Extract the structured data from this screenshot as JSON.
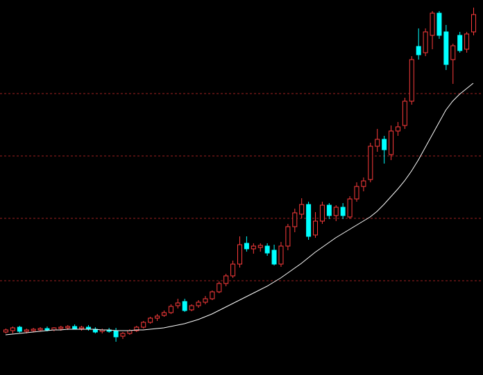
{
  "chart_data": {
    "type": "candlestick",
    "categories": [
      null,
      null,
      null,
      null,
      null,
      null,
      null,
      null,
      null,
      null,
      null,
      null,
      null,
      null,
      null,
      null,
      null,
      null,
      null,
      null,
      null,
      null,
      null,
      null,
      null,
      null,
      null,
      null,
      null,
      null,
      null,
      null,
      null,
      null,
      null,
      null,
      null,
      null,
      null,
      null,
      null,
      null,
      null,
      null,
      null,
      null,
      null,
      null,
      null,
      null,
      null,
      null,
      null,
      null,
      null,
      null,
      null,
      null,
      null,
      null,
      null,
      null,
      null,
      null,
      null,
      null,
      null,
      null,
      null
    ],
    "candles": {
      "open": [
        62,
        64,
        69,
        63,
        64,
        65,
        67,
        65,
        67,
        68,
        70,
        67,
        69,
        66,
        63,
        65,
        64,
        56,
        60,
        64,
        69,
        76,
        82,
        86,
        90,
        100,
        106,
        94,
        100,
        105,
        110,
        120,
        132,
        143,
        160,
        190,
        182,
        184,
        186,
        180,
        160,
        186,
        214,
        232,
        246,
        202,
        222,
        245,
        230,
        242,
        228,
        254,
        272,
        282,
        330,
        340,
        318,
        352,
        360,
        395,
        474,
        465,
        490,
        522,
        495,
        455,
        490,
        470,
        495
      ],
      "high": [
        67,
        70,
        71,
        67,
        68,
        69,
        70,
        69,
        71,
        72,
        73,
        71,
        72,
        69,
        67,
        68,
        68,
        62,
        66,
        71,
        78,
        84,
        88,
        93,
        102,
        110,
        110,
        102,
        108,
        114,
        122,
        135,
        146,
        165,
        200,
        200,
        190,
        190,
        190,
        188,
        192,
        218,
        240,
        255,
        250,
        235,
        250,
        248,
        245,
        248,
        258,
        278,
        285,
        335,
        355,
        345,
        360,
        365,
        400,
        460,
        500,
        500,
        525,
        525,
        505,
        478,
        495,
        495,
        530
      ],
      "low": [
        60,
        60,
        61,
        60,
        62,
        63,
        63,
        63,
        64,
        65,
        66,
        64,
        64,
        60,
        60,
        61,
        48,
        52,
        58,
        62,
        67,
        74,
        78,
        84,
        88,
        96,
        91,
        92,
        97,
        102,
        108,
        118,
        128,
        140,
        155,
        178,
        175,
        178,
        172,
        158,
        156,
        180,
        206,
        226,
        195,
        198,
        218,
        225,
        222,
        225,
        225,
        250,
        265,
        278,
        322,
        305,
        310,
        345,
        355,
        390,
        455,
        460,
        470,
        485,
        440,
        420,
        465,
        465,
        490
      ],
      "close": [
        65,
        68,
        63,
        65,
        66,
        67,
        65,
        68,
        69,
        70,
        67,
        69,
        66,
        62,
        65,
        63,
        55,
        60,
        64,
        69,
        76,
        82,
        85,
        90,
        99,
        104,
        93,
        100,
        105,
        110,
        120,
        132,
        143,
        160,
        188,
        182,
        186,
        187,
        176,
        160,
        186,
        214,
        234,
        246,
        200,
        222,
        245,
        230,
        242,
        230,
        254,
        272,
        280,
        330,
        340,
        325,
        352,
        358,
        395,
        455,
        462,
        495,
        522,
        490,
        448,
        475,
        468,
        492,
        520
      ]
    },
    "up_color": "#ff3c3c",
    "down_color": "#00ffff",
    "series": [
      {
        "color": "#ffffff",
        "values": [
          58,
          59,
          60,
          61,
          62,
          63,
          64,
          65,
          65,
          66,
          66,
          66,
          66,
          66,
          65,
          65,
          64,
          64,
          64,
          65,
          65,
          66,
          67,
          68,
          70,
          72,
          74,
          77,
          80,
          84,
          88,
          93,
          98,
          103,
          108,
          113,
          118,
          123,
          128,
          134,
          140,
          147,
          154,
          161,
          169,
          177,
          184,
          191,
          198,
          204,
          210,
          216,
          222,
          228,
          236,
          246,
          257,
          268,
          280,
          294,
          310,
          328,
          346,
          364,
          382,
          395,
          405,
          413,
          421
        ]
      }
    ],
    "ylim": [
      0,
      541
    ],
    "yticks": [
      136,
      226,
      316,
      406
    ],
    "grid": true,
    "grid_color": "#a02020"
  }
}
